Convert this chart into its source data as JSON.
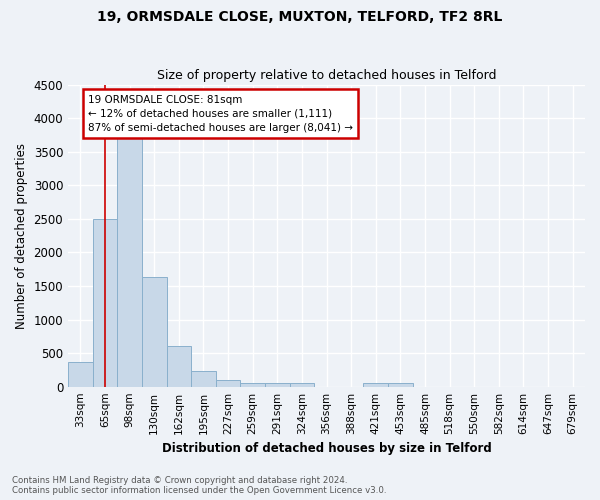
{
  "title1": "19, ORMSDALE CLOSE, MUXTON, TELFORD, TF2 8RL",
  "title2": "Size of property relative to detached houses in Telford",
  "xlabel": "Distribution of detached houses by size in Telford",
  "ylabel": "Number of detached properties",
  "categories": [
    "33sqm",
    "65sqm",
    "98sqm",
    "130sqm",
    "162sqm",
    "195sqm",
    "227sqm",
    "259sqm",
    "291sqm",
    "324sqm",
    "356sqm",
    "388sqm",
    "421sqm",
    "453sqm",
    "485sqm",
    "518sqm",
    "550sqm",
    "582sqm",
    "614sqm",
    "647sqm",
    "679sqm"
  ],
  "values": [
    375,
    2500,
    3750,
    1640,
    600,
    240,
    105,
    60,
    50,
    50,
    0,
    0,
    60,
    50,
    0,
    0,
    0,
    0,
    0,
    0,
    0
  ],
  "bar_color": "#c8d8e8",
  "bar_edge_color": "#8ab0cc",
  "annotation_text": "19 ORMSDALE CLOSE: 81sqm\n← 12% of detached houses are smaller (1,111)\n87% of semi-detached houses are larger (8,041) →",
  "annotation_box_color": "#ffffff",
  "annotation_box_edge": "#cc0000",
  "ylim": [
    0,
    4500
  ],
  "yticks": [
    0,
    500,
    1000,
    1500,
    2000,
    2500,
    3000,
    3500,
    4000,
    4500
  ],
  "footnote1": "Contains HM Land Registry data © Crown copyright and database right 2024.",
  "footnote2": "Contains public sector information licensed under the Open Government Licence v3.0.",
  "bg_color": "#eef2f7",
  "plot_bg_color": "#eef2f7",
  "grid_color": "#ffffff"
}
